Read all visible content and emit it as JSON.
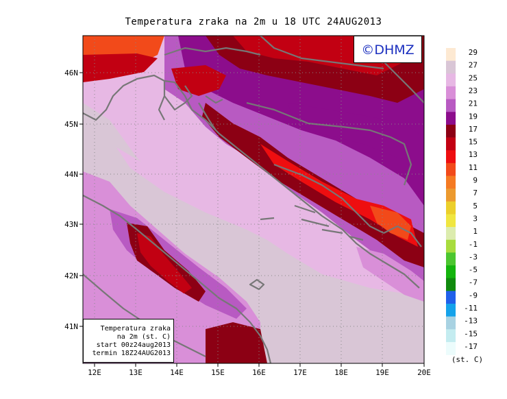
{
  "title": "Temperatura zraka na 2m u 18 UTC 24AUG2013",
  "watermark": "©DHMZ",
  "info_box": {
    "line1": "Temperatura zraka",
    "line2": "na 2m (st. C)",
    "line3": "start 00z24aug2013",
    "line4": "termin 18Z24AUG2013"
  },
  "axes": {
    "lat_labels": [
      "46N",
      "45N",
      "44N",
      "43N",
      "42N",
      "41N"
    ],
    "lon_labels": [
      "12E",
      "13E",
      "14E",
      "15E",
      "16E",
      "17E",
      "18E",
      "19E",
      "20E"
    ]
  },
  "legend": {
    "unit": "(st. C)",
    "labels": [
      "29",
      "27",
      "25",
      "23",
      "21",
      "19",
      "17",
      "15",
      "13",
      "11",
      "9",
      "7",
      "5",
      "3",
      "1",
      "-1",
      "-3",
      "-5",
      "-7",
      "-9",
      "-11",
      "-13",
      "-15",
      "-17"
    ],
    "colors": [
      "#fde9d2",
      "#d9c6d6",
      "#e7b8e4",
      "#d98fd8",
      "#b85ac2",
      "#8c0d8c",
      "#8c0014",
      "#c20012",
      "#ee0e10",
      "#f24a1a",
      "#f57a22",
      "#ec9a2f",
      "#eccf2b",
      "#f0e640",
      "#dcecae",
      "#a8dc3e",
      "#4cc630",
      "#14b40d",
      "#108a0e",
      "#2060ea",
      "#14a2ea",
      "#a8d2e2",
      "#c4ecf0",
      "#ecfcfc"
    ]
  },
  "colors": {
    "sea_light": "#d9c6d6",
    "sea_pink": "#e7b8e4",
    "land_warm": "#d98fd8",
    "land_purple": "#b85ac2",
    "hot_dark": "#8c0014",
    "hot_red": "#c20012",
    "hot_bright": "#ee0e10",
    "coast": "#777777"
  }
}
